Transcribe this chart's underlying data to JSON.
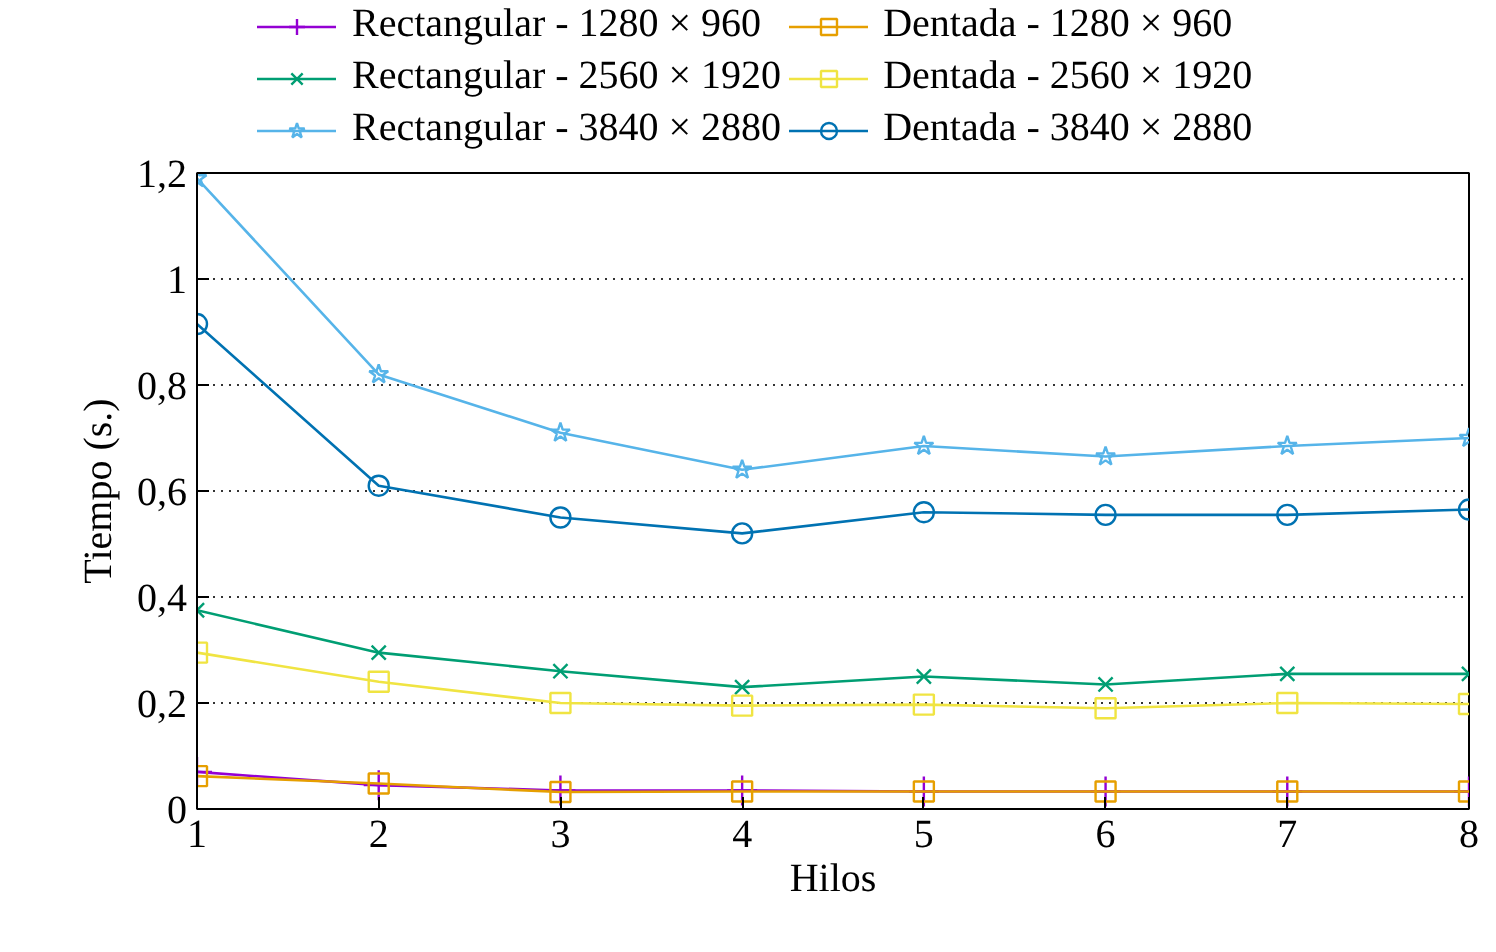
{
  "chart_data": {
    "type": "line",
    "xlabel": "Hilos",
    "ylabel": "Tiempo (s.)",
    "x": [
      1,
      2,
      3,
      4,
      5,
      6,
      7,
      8
    ],
    "xlim": [
      1,
      8
    ],
    "xticks": [
      1,
      2,
      3,
      4,
      5,
      6,
      7,
      8
    ],
    "ylim": [
      0,
      1.2
    ],
    "yticks": [
      0,
      {
        "value": 0.2,
        "label": "0,2"
      },
      {
        "value": 0.4,
        "label": "0,4"
      },
      {
        "value": 0.6,
        "label": "0,6"
      },
      {
        "value": 0.8,
        "label": "0,8"
      },
      1,
      {
        "value": 1.2,
        "label": "1,2"
      }
    ],
    "grid": "y",
    "legend": "top",
    "series": [
      {
        "name": "Rectangular - 1280 × 960",
        "color": "#9400d3",
        "marker": "cross",
        "values": [
          0.07,
          0.045,
          0.035,
          0.035,
          0.033,
          0.033,
          0.033,
          0.033
        ]
      },
      {
        "name": "Rectangular - 2560 × 1920",
        "color": "#009e73",
        "marker": "x",
        "values": [
          0.375,
          0.295,
          0.26,
          0.23,
          0.25,
          0.235,
          0.255,
          0.255
        ]
      },
      {
        "name": "Rectangular - 3840 × 2880",
        "color": "#56b4e9",
        "marker": "star",
        "values": [
          1.19,
          0.82,
          0.71,
          0.64,
          0.685,
          0.665,
          0.685,
          0.7
        ]
      },
      {
        "name": "Dentada - 1280 × 960",
        "color": "#e69f00",
        "marker": "square",
        "values": [
          0.062,
          0.048,
          0.032,
          0.033,
          0.033,
          0.033,
          0.033,
          0.033
        ]
      },
      {
        "name": "Dentada - 2560 × 1920",
        "color": "#f0e442",
        "marker": "square",
        "values": [
          0.295,
          0.24,
          0.2,
          0.195,
          0.197,
          0.19,
          0.2,
          0.198
        ]
      },
      {
        "name": "Dentada - 3840 × 2880",
        "color": "#0072b2",
        "marker": "circle",
        "values": [
          0.915,
          0.61,
          0.55,
          0.52,
          0.56,
          0.555,
          0.555,
          0.565
        ]
      }
    ]
  }
}
